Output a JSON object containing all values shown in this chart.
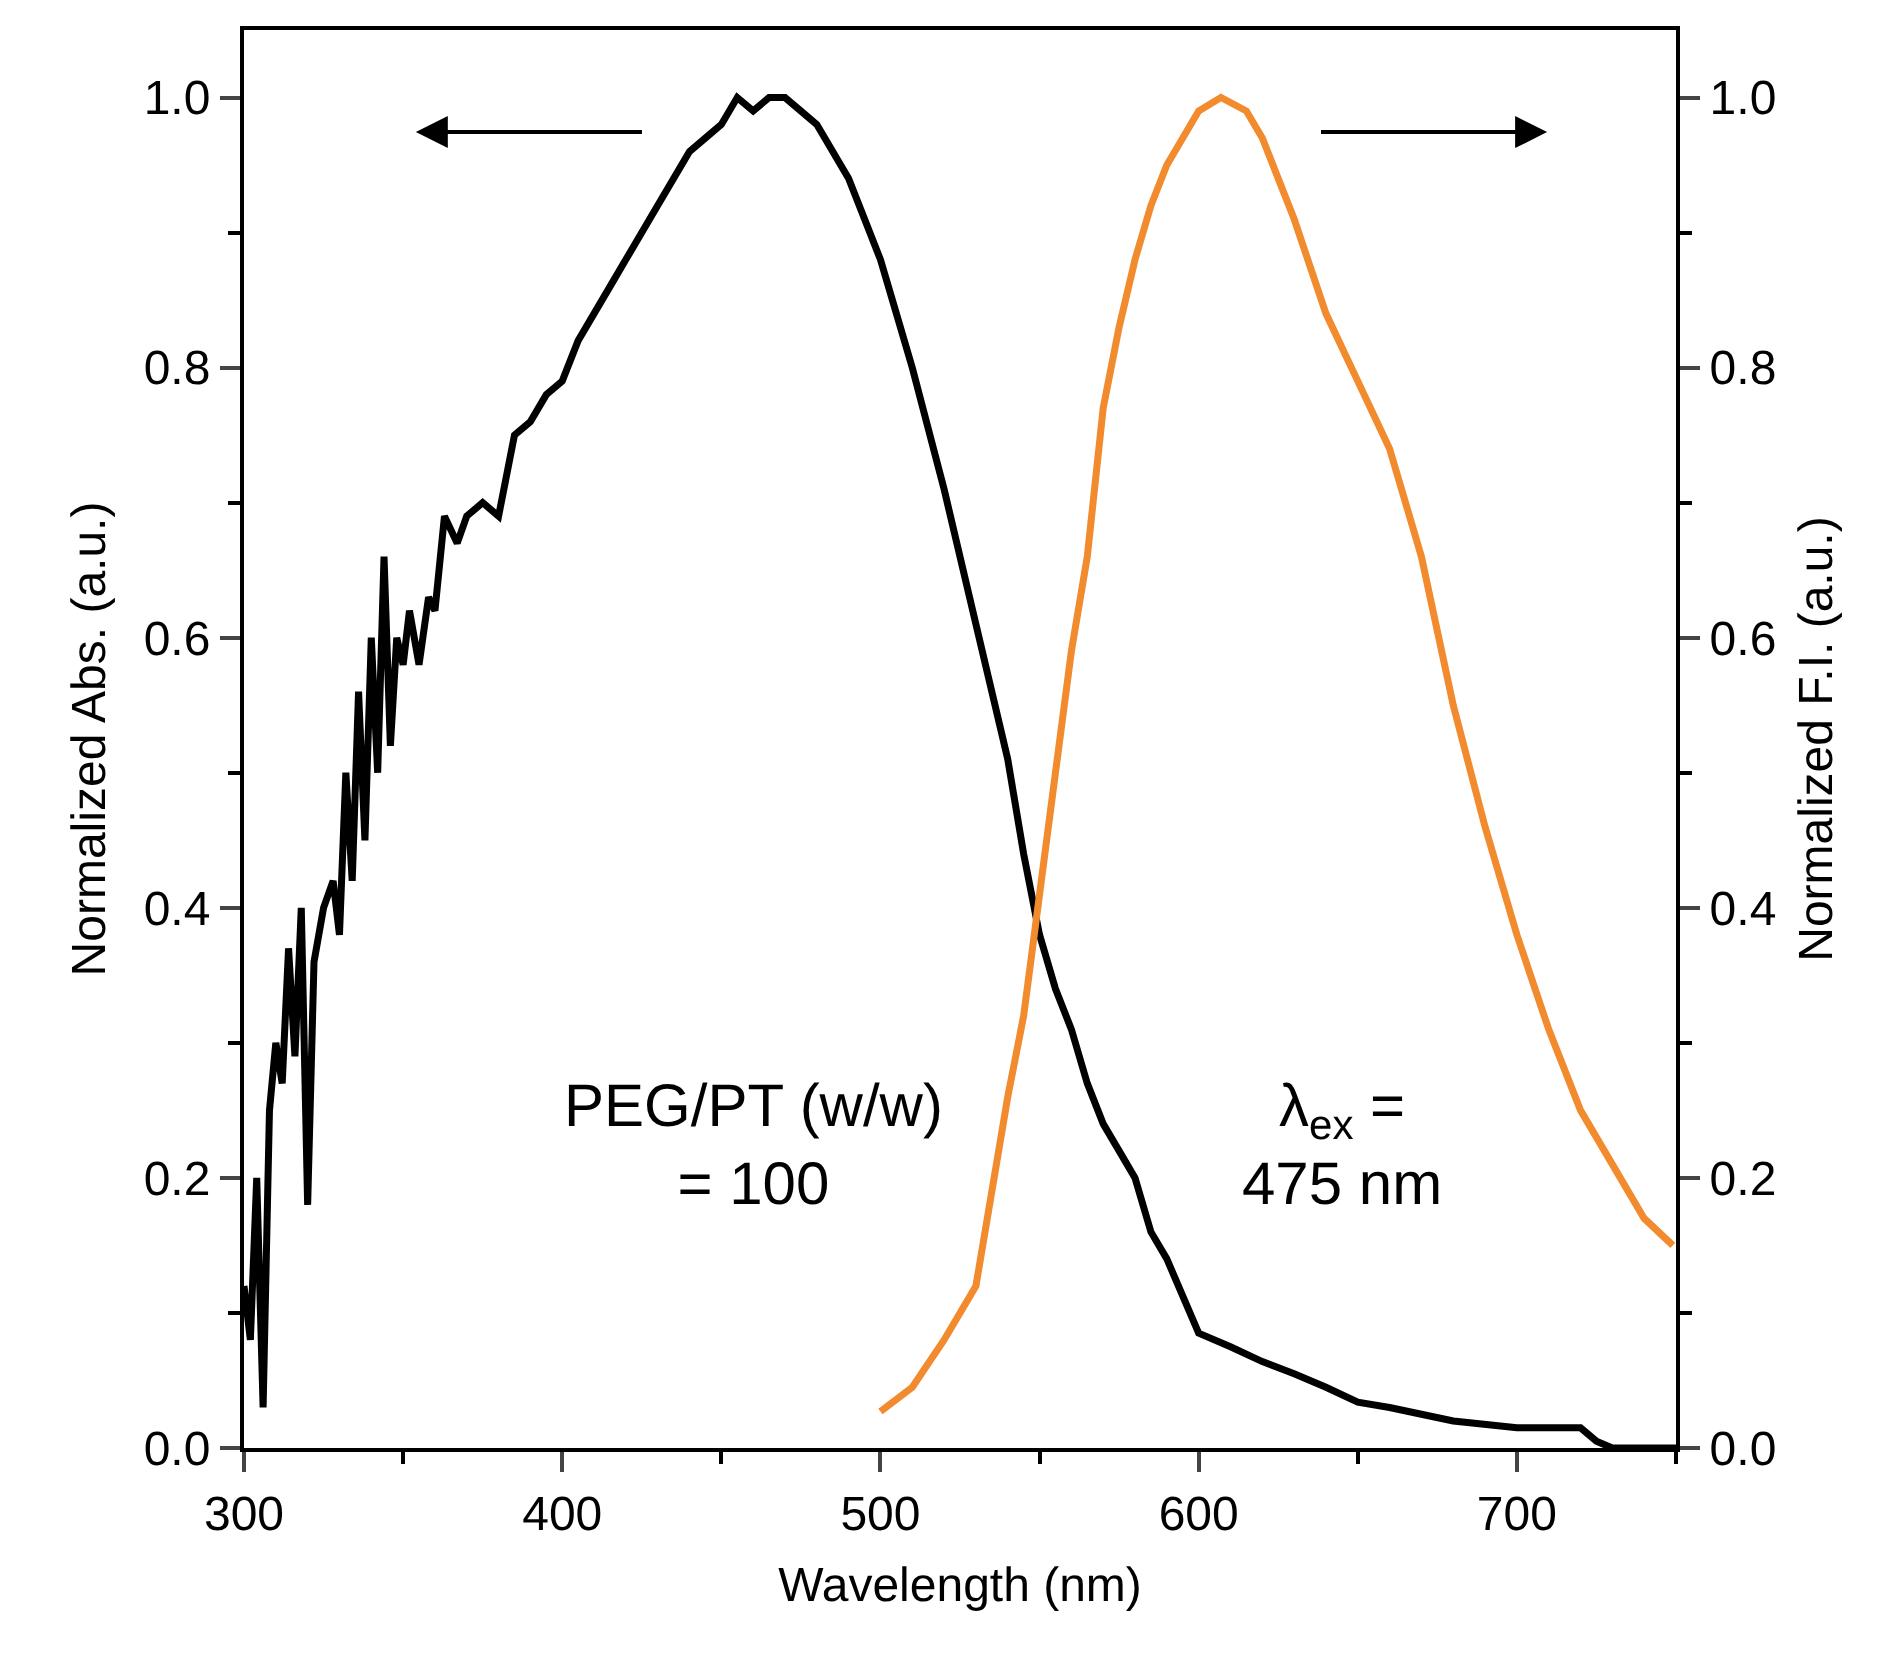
{
  "chart_data": {
    "type": "line",
    "xlabel": "Wavelength (nm)",
    "ylabel": "Normalized Abs. (a.u.)",
    "y2label": "Normalized F.I. (a.u.)",
    "xlim": [
      300,
      750
    ],
    "xticks": [
      300,
      400,
      500,
      600,
      700
    ],
    "ylim": [
      0,
      1.05
    ],
    "yticks": [
      {
        "value": 0,
        "label": "0.0"
      },
      0.2,
      0.4,
      0.6,
      0.8,
      {
        "value": 1,
        "label": "1.0"
      }
    ],
    "y2lim": [
      0,
      1.05
    ],
    "y2ticks": [
      {
        "value": 0,
        "label": "0.0"
      },
      0.2,
      0.4,
      0.6,
      0.8,
      {
        "value": 1,
        "label": "1.0"
      }
    ],
    "grid": false,
    "marker": "none",
    "series": [
      {
        "color": "#000000",
        "axis": "y",
        "x": [
          300,
          302,
          304,
          306,
          308,
          310,
          312,
          314,
          316,
          318,
          320,
          322,
          325,
          328,
          330,
          332,
          334,
          336,
          338,
          340,
          342,
          344,
          346,
          348,
          350,
          352,
          355,
          358,
          360,
          363,
          367,
          370,
          375,
          380,
          385,
          390,
          395,
          400,
          405,
          410,
          415,
          420,
          425,
          430,
          435,
          440,
          445,
          450,
          455,
          460,
          465,
          470,
          475,
          480,
          485,
          490,
          495,
          500,
          505,
          510,
          520,
          530,
          540,
          545,
          550,
          555,
          560,
          565,
          570,
          575,
          580,
          585,
          590,
          600,
          610,
          620,
          630,
          640,
          650,
          660,
          670,
          680,
          700,
          720,
          725,
          730,
          750
        ],
        "values": [
          0.12,
          0.08,
          0.2,
          0.03,
          0.25,
          0.3,
          0.27,
          0.37,
          0.29,
          0.4,
          0.18,
          0.36,
          0.4,
          0.42,
          0.38,
          0.5,
          0.42,
          0.56,
          0.45,
          0.6,
          0.5,
          0.66,
          0.52,
          0.6,
          0.58,
          0.62,
          0.58,
          0.63,
          0.62,
          0.69,
          0.67,
          0.69,
          0.7,
          0.69,
          0.75,
          0.76,
          0.78,
          0.79,
          0.82,
          0.84,
          0.86,
          0.88,
          0.9,
          0.92,
          0.94,
          0.96,
          0.97,
          0.98,
          1.0,
          0.99,
          1.0,
          1.0,
          0.99,
          0.98,
          0.96,
          0.94,
          0.91,
          0.88,
          0.84,
          0.8,
          0.71,
          0.61,
          0.51,
          0.44,
          0.38,
          0.34,
          0.31,
          0.27,
          0.24,
          0.22,
          0.2,
          0.16,
          0.14,
          0.085,
          0.075,
          0.064,
          0.055,
          0.045,
          0.034,
          0.03,
          0.025,
          0.02,
          0.015,
          0.015,
          0.005,
          0.0,
          0.0
        ]
      },
      {
        "color": "#f28a2e",
        "axis": "y2",
        "x": [
          500,
          510,
          520,
          530,
          540,
          545,
          550,
          555,
          560,
          565,
          570,
          575,
          580,
          585,
          590,
          595,
          600,
          607,
          615,
          620,
          630,
          640,
          650,
          660,
          670,
          680,
          690,
          700,
          710,
          720,
          730,
          740,
          749
        ],
        "values": [
          0.027,
          0.045,
          0.08,
          0.12,
          0.26,
          0.32,
          0.41,
          0.5,
          0.59,
          0.66,
          0.77,
          0.83,
          0.88,
          0.92,
          0.95,
          0.97,
          0.99,
          1.0,
          0.99,
          0.97,
          0.91,
          0.84,
          0.79,
          0.74,
          0.66,
          0.55,
          0.46,
          0.38,
          0.31,
          0.25,
          0.21,
          0.17,
          0.15
        ]
      }
    ],
    "annotations": [
      "PEG/PT (w/w)\n= 100",
      "λ$_{ex}$ =\n475 nm"
    ]
  }
}
